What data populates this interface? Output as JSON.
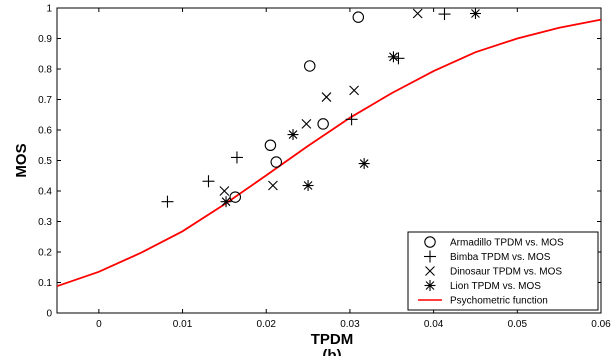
{
  "chart_data": {
    "type": "scatter",
    "xlabel": "TPDM",
    "ylabel": "MOS",
    "caption": "(b)",
    "xlim": [
      -0.005,
      0.06
    ],
    "ylim": [
      0,
      1
    ],
    "xticks": [
      "0",
      "0.01",
      "0.02",
      "0.03",
      "0.04",
      "0.05",
      "0.06"
    ],
    "xtick_values": [
      0,
      0.01,
      0.02,
      0.03,
      0.04,
      0.05,
      0.06
    ],
    "yticks": [
      "0",
      "0.1",
      "0.2",
      "0.3",
      "0.4",
      "0.5",
      "0.6",
      "0.7",
      "0.8",
      "0.9",
      "1"
    ],
    "ytick_values": [
      0,
      0.1,
      0.2,
      0.3,
      0.4,
      0.5,
      0.6,
      0.7,
      0.8,
      0.9,
      1
    ],
    "grid": false,
    "legend_position": "bottom-right",
    "series": [
      {
        "name": "Armadillo TPDM vs. MOS",
        "marker": "circle",
        "color": "#000000",
        "points": [
          [
            0.0163,
            0.38
          ],
          [
            0.0205,
            0.55
          ],
          [
            0.0212,
            0.495
          ],
          [
            0.0252,
            0.81
          ],
          [
            0.0268,
            0.62
          ],
          [
            0.031,
            0.97
          ]
        ]
      },
      {
        "name": "Bimba TPDM vs. MOS",
        "marker": "plus",
        "color": "#000000",
        "points": [
          [
            0.0082,
            0.365
          ],
          [
            0.0131,
            0.432
          ],
          [
            0.0165,
            0.51
          ],
          [
            0.0302,
            0.635
          ],
          [
            0.0358,
            0.835
          ],
          [
            0.0413,
            0.98
          ]
        ]
      },
      {
        "name": "Dinosaur TPDM vs. MOS",
        "marker": "x",
        "color": "#000000",
        "points": [
          [
            0.015,
            0.4
          ],
          [
            0.0208,
            0.418
          ],
          [
            0.0248,
            0.62
          ],
          [
            0.0272,
            0.708
          ],
          [
            0.0305,
            0.73
          ],
          [
            0.0381,
            0.982
          ]
        ]
      },
      {
        "name": "Lion TPDM vs. MOS",
        "marker": "asterisk",
        "color": "#000000",
        "points": [
          [
            0.0152,
            0.365
          ],
          [
            0.0232,
            0.585
          ],
          [
            0.025,
            0.418
          ],
          [
            0.0317,
            0.49
          ],
          [
            0.0352,
            0.84
          ],
          [
            0.045,
            0.982
          ]
        ]
      },
      {
        "name": "Psychometric function",
        "marker": "line",
        "color": "#ff0000",
        "curve": [
          [
            -0.005,
            0.088
          ],
          [
            0.0,
            0.135
          ],
          [
            0.005,
            0.197
          ],
          [
            0.01,
            0.268
          ],
          [
            0.015,
            0.356
          ],
          [
            0.02,
            0.451
          ],
          [
            0.025,
            0.548
          ],
          [
            0.03,
            0.64
          ],
          [
            0.035,
            0.721
          ],
          [
            0.04,
            0.793
          ],
          [
            0.045,
            0.855
          ],
          [
            0.05,
            0.9
          ],
          [
            0.055,
            0.935
          ],
          [
            0.06,
            0.962
          ]
        ]
      }
    ]
  }
}
